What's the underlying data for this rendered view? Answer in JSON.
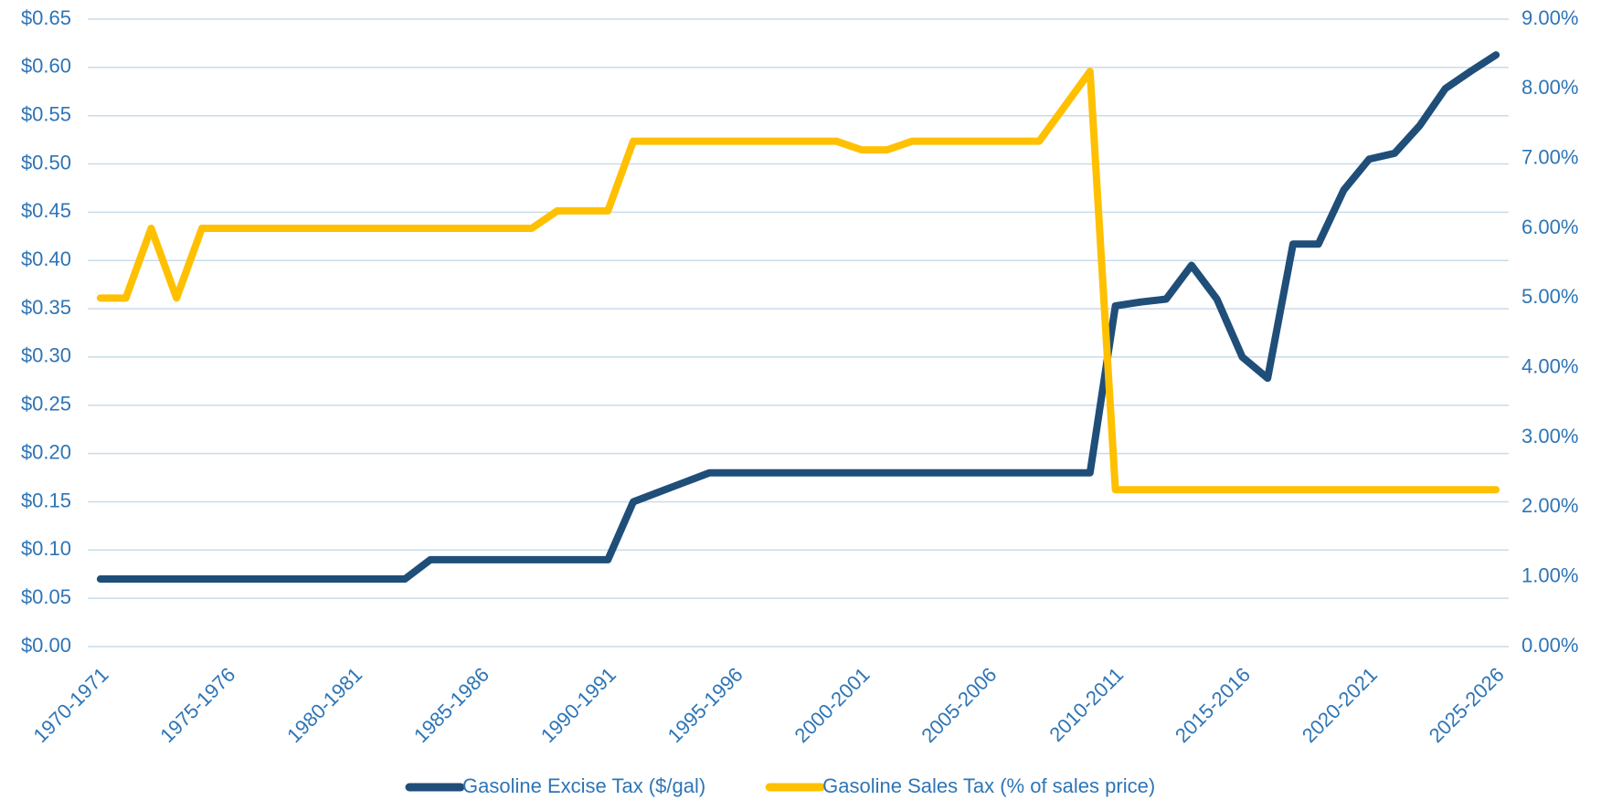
{
  "chart_data": {
    "type": "line",
    "categories": [
      "1970-1971",
      null,
      null,
      null,
      null,
      "1975-1976",
      null,
      null,
      null,
      null,
      "1980-1981",
      null,
      null,
      null,
      null,
      "1985-1986",
      null,
      null,
      null,
      null,
      "1990-1991",
      null,
      null,
      null,
      null,
      "1995-1996",
      null,
      null,
      null,
      null,
      "2000-2001",
      null,
      null,
      null,
      null,
      "2005-2006",
      null,
      null,
      null,
      null,
      "2010-2011",
      null,
      null,
      null,
      null,
      "2015-2016",
      null,
      null,
      null,
      null,
      "2020-2021",
      null,
      null,
      null,
      null,
      "2025-2026"
    ],
    "series": [
      {
        "name": "Gasoline Excise Tax ($/gal)",
        "color": "#1f4e79",
        "axis": "y",
        "values": [
          0.07,
          0.07,
          0.07,
          0.07,
          0.07,
          0.07,
          0.07,
          0.07,
          0.07,
          0.07,
          0.07,
          0.07,
          0.07,
          0.09,
          0.09,
          0.09,
          0.09,
          0.09,
          0.09,
          0.09,
          0.09,
          0.15,
          0.16,
          0.17,
          0.18,
          0.18,
          0.18,
          0.18,
          0.18,
          0.18,
          0.18,
          0.18,
          0.18,
          0.18,
          0.18,
          0.18,
          0.18,
          0.18,
          0.18,
          0.18,
          0.353,
          0.357,
          0.36,
          0.395,
          0.36,
          0.3,
          0.278,
          0.417,
          0.417,
          0.473,
          0.505,
          0.511,
          0.54,
          0.578,
          0.596,
          0.613
        ]
      },
      {
        "name": "Gasoline Sales Tax (% of sales price)",
        "color": "#ffc000",
        "axis": "y2",
        "values": [
          5.0,
          5.0,
          6.0,
          5.0,
          6.0,
          6.0,
          6.0,
          6.0,
          6.0,
          6.0,
          6.0,
          6.0,
          6.0,
          6.0,
          6.0,
          6.0,
          6.0,
          6.0,
          6.25,
          6.25,
          6.25,
          7.25,
          7.25,
          7.25,
          7.25,
          7.25,
          7.25,
          7.25,
          7.25,
          7.25,
          7.125,
          7.125,
          7.25,
          7.25,
          7.25,
          7.25,
          7.25,
          7.25,
          7.75,
          8.25,
          2.25,
          2.25,
          2.25,
          2.25,
          2.25,
          2.25,
          2.25,
          2.25,
          2.25,
          2.25,
          2.25,
          2.25,
          2.25,
          2.25,
          2.25,
          2.25
        ]
      }
    ],
    "ylim": [
      0,
      0.65
    ],
    "yticks": [
      {
        "value": 0,
        "label": "$0.00"
      },
      {
        "value": 0.05,
        "label": "$0.05"
      },
      {
        "value": 0.1,
        "label": "$0.10"
      },
      {
        "value": 0.15,
        "label": "$0.15"
      },
      {
        "value": 0.2,
        "label": "$0.20"
      },
      {
        "value": 0.25,
        "label": "$0.25"
      },
      {
        "value": 0.3,
        "label": "$0.30"
      },
      {
        "value": 0.35,
        "label": "$0.35"
      },
      {
        "value": 0.4,
        "label": "$0.40"
      },
      {
        "value": 0.45,
        "label": "$0.45"
      },
      {
        "value": 0.5,
        "label": "$0.50"
      },
      {
        "value": 0.55,
        "label": "$0.55"
      },
      {
        "value": 0.6,
        "label": "$0.60"
      },
      {
        "value": 0.65,
        "label": "$0.65"
      }
    ],
    "y2lim": [
      0,
      9
    ],
    "y2ticks": [
      {
        "value": 0,
        "label": "0.00%"
      },
      {
        "value": 1,
        "label": "1.00%"
      },
      {
        "value": 2,
        "label": "2.00%"
      },
      {
        "value": 3,
        "label": "3.00%"
      },
      {
        "value": 4,
        "label": "4.00%"
      },
      {
        "value": 5,
        "label": "5.00%"
      },
      {
        "value": 6,
        "label": "6.00%"
      },
      {
        "value": 7,
        "label": "7.00%"
      },
      {
        "value": 8,
        "label": "8.00%"
      },
      {
        "value": 9,
        "label": "9.00%"
      }
    ],
    "grid": true,
    "legend": "bottom"
  }
}
